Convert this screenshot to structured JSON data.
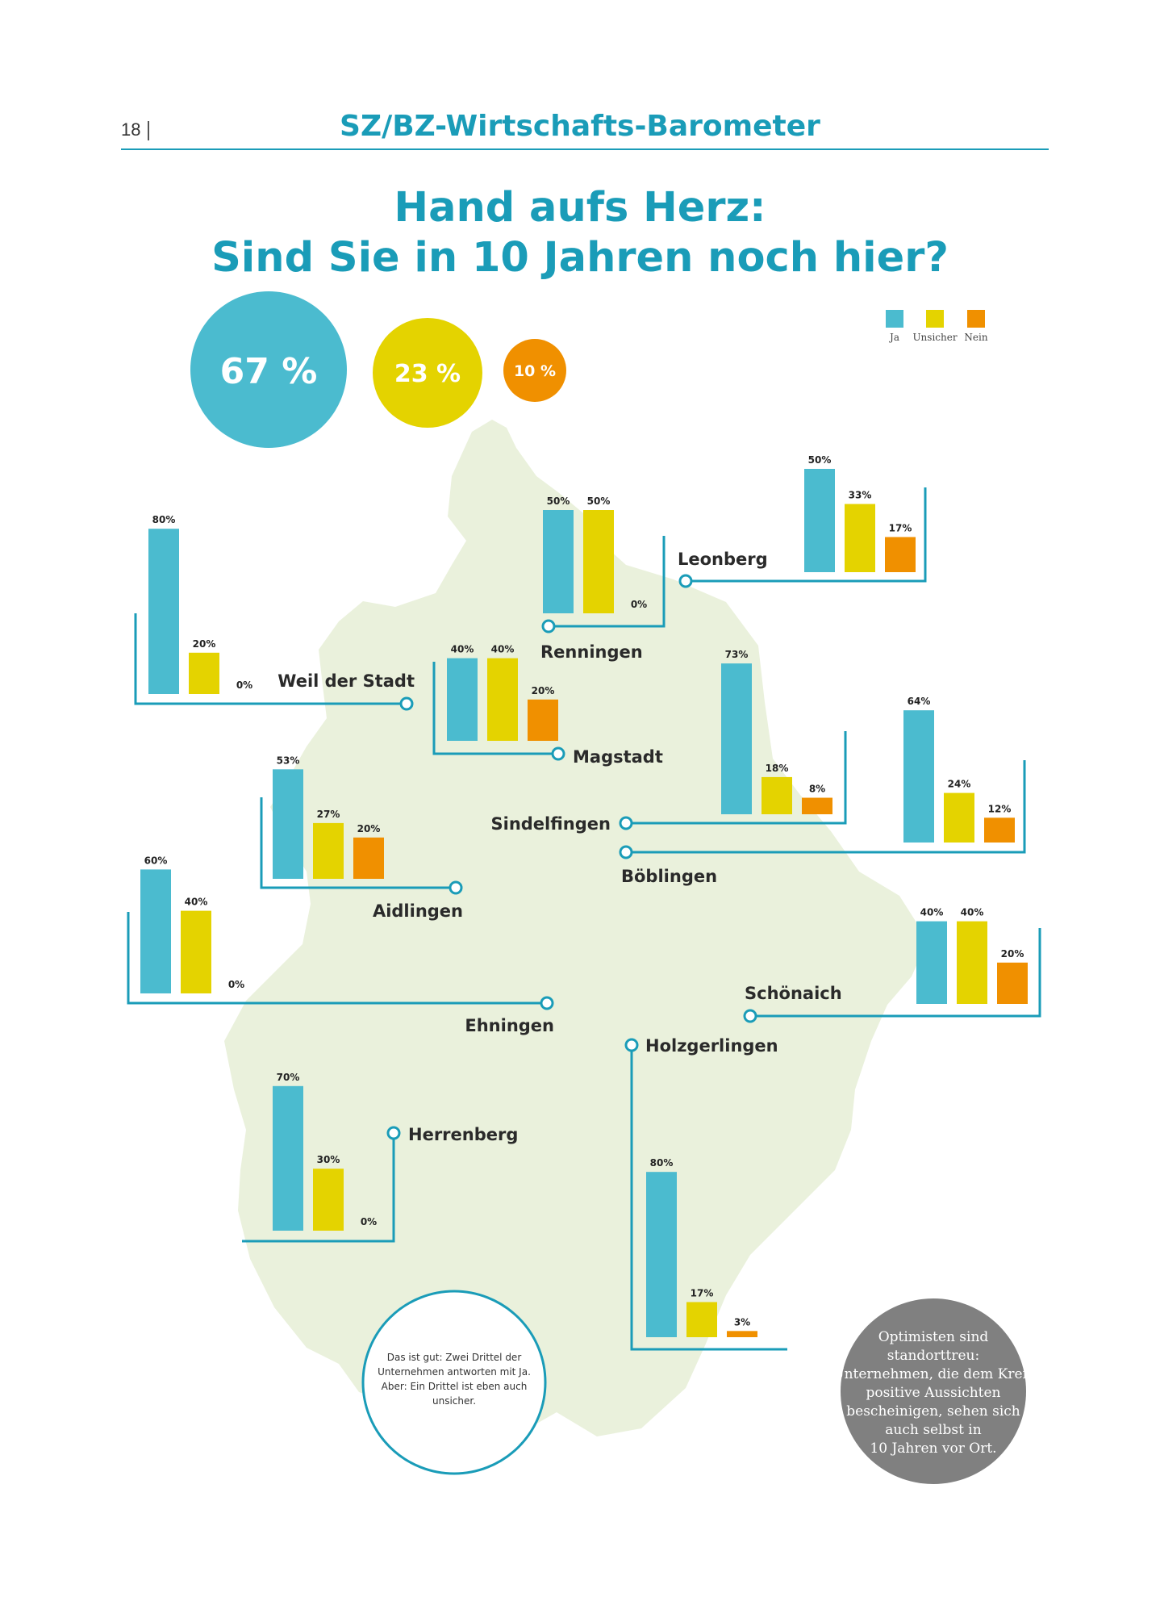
{
  "header": {
    "page_number": "18",
    "title": "SZ/BZ-Wirtschafts-Barometer"
  },
  "headline": {
    "line1": "Hand aufs Herz:",
    "line2": "Sind Sie in 10 Jahren noch hier?"
  },
  "colors": {
    "accent": "#1a9cb8",
    "ja": "#4bbbcf",
    "unsicher": "#e4d300",
    "nein": "#f09000",
    "map": "#eaf1dc",
    "note_gray": "#808080"
  },
  "chart_data": {
    "type": "bar",
    "title": "Hand aufs Herz: Sind Sie in 10 Jahren noch hier?",
    "legend": {
      "position": "top-right",
      "entries": [
        "Ja",
        "Unsicher",
        "Nein"
      ]
    },
    "totals": [
      {
        "label": "67 %",
        "value": 67
      },
      {
        "label": "23 %",
        "value": 23
      },
      {
        "label": "10 %",
        "value": 10
      }
    ],
    "categories": [
      "Weil der Stadt",
      "Renningen",
      "Leonberg",
      "Magstadt",
      "Sindelfingen",
      "Böblingen",
      "Aidlingen",
      "Ehningen",
      "Schönaich",
      "Holzgerlingen",
      "Herrenberg"
    ],
    "series": [
      {
        "name": "Ja",
        "values": [
          80,
          50,
          50,
          40,
          73,
          64,
          53,
          60,
          40,
          80,
          70
        ]
      },
      {
        "name": "Unsicher",
        "values": [
          20,
          50,
          33,
          40,
          18,
          24,
          27,
          40,
          40,
          17,
          30
        ]
      },
      {
        "name": "Nein",
        "values": [
          0,
          0,
          17,
          20,
          8,
          12,
          20,
          0,
          20,
          3,
          0
        ]
      }
    ],
    "value_labels": [
      [
        "80%",
        "20%",
        "0%"
      ],
      [
        "50%",
        "50%",
        "0%"
      ],
      [
        "50%",
        "33%",
        "17%"
      ],
      [
        "40%",
        "40%",
        "20%"
      ],
      [
        "73%",
        "18%",
        "8%"
      ],
      [
        "64%",
        "24%",
        "12%"
      ],
      [
        "53%",
        "27%",
        "20%"
      ],
      [
        "60%",
        "40%",
        "0%"
      ],
      [
        "40%",
        "40%",
        "20%"
      ],
      [
        "80%",
        "17%",
        "3%"
      ],
      [
        "70%",
        "30%",
        "0%"
      ]
    ],
    "ylim": [
      0,
      100
    ]
  },
  "notes": {
    "left": [
      "Das ist gut: Zwei Drittel der",
      "Unternehmen antworten mit Ja.",
      "Aber: Ein Drittel ist eben auch",
      "unsicher."
    ],
    "right": [
      "Optimisten sind",
      "standorttreu:",
      "Unternehmen, die dem Kreis",
      "positive Aussichten",
      "bescheinigen, sehen sich",
      "auch selbst in",
      "10 Jahren vor Ort."
    ]
  }
}
